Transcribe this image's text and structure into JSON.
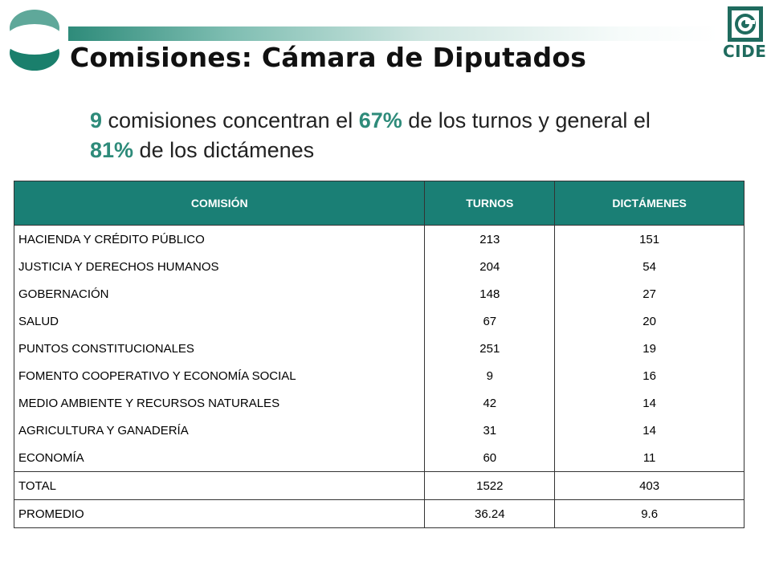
{
  "title": "Comisiones: Cámara de Diputados",
  "subtitle": {
    "part1_hl": "9",
    "part2": " comisiones concentran el ",
    "part3_hl": "67%",
    "part4": " de los turnos y general el ",
    "part5_hl": "81%",
    "part6": " de los dictámenes"
  },
  "logo_right_text": "CIDE",
  "colors": {
    "accent": "#2e8b7a",
    "header_bg": "#1a7f75"
  },
  "table": {
    "headers": [
      "COMISIÓN",
      "TURNOS",
      "DICTÁMENES"
    ],
    "rows": [
      [
        "HACIENDA Y CRÉDITO PÚBLICO",
        "213",
        "151"
      ],
      [
        "JUSTICIA Y DERECHOS HUMANOS",
        "204",
        "54"
      ],
      [
        "GOBERNACIÓN",
        "148",
        "27"
      ],
      [
        "SALUD",
        "67",
        "20"
      ],
      [
        "PUNTOS CONSTITUCIONALES",
        "251",
        "19"
      ],
      [
        "FOMENTO COOPERATIVO  Y ECONOMÍA SOCIAL",
        "9",
        "16"
      ],
      [
        "MEDIO AMBIENTE Y RECURSOS NATURALES",
        "42",
        "14"
      ],
      [
        "AGRICULTURA Y GANADERÍA",
        "31",
        "14"
      ],
      [
        "ECONOMÍA",
        "60",
        "11"
      ]
    ],
    "total": [
      "TOTAL",
      "1522",
      "403"
    ],
    "average": [
      "PROMEDIO",
      "36.24",
      "9.6"
    ]
  }
}
